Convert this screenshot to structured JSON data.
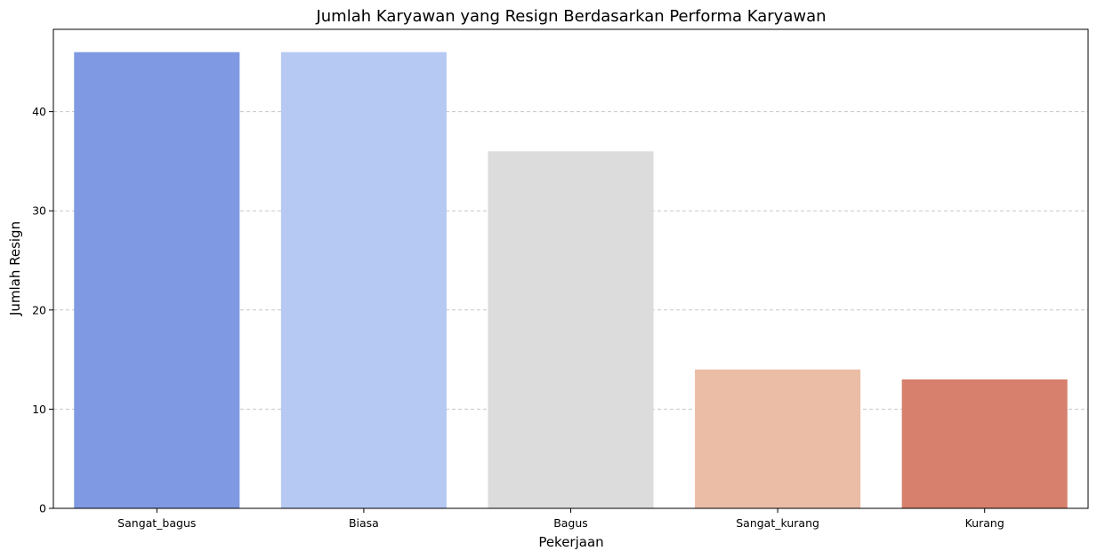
{
  "chart_data": {
    "type": "bar",
    "title": "Jumlah Karyawan yang Resign Berdasarkan Performa Karyawan",
    "xlabel": "Pekerjaan",
    "ylabel": "Jumlah Resign",
    "categories": [
      "Sangat_bagus",
      "Biasa",
      "Bagus",
      "Sangat_kurang",
      "Kurang"
    ],
    "values": [
      46,
      46,
      36,
      14,
      13
    ],
    "colors": [
      "#7f9ae3",
      "#b6c9f3",
      "#dcdcdc",
      "#ebbca6",
      "#d6806d"
    ],
    "ylim": [
      0,
      48.3
    ],
    "yticks": [
      0,
      10,
      20,
      30,
      40
    ],
    "grid": {
      "axis": "y",
      "style": "dashed",
      "color": "#c7c7c7"
    },
    "legend": "none"
  }
}
